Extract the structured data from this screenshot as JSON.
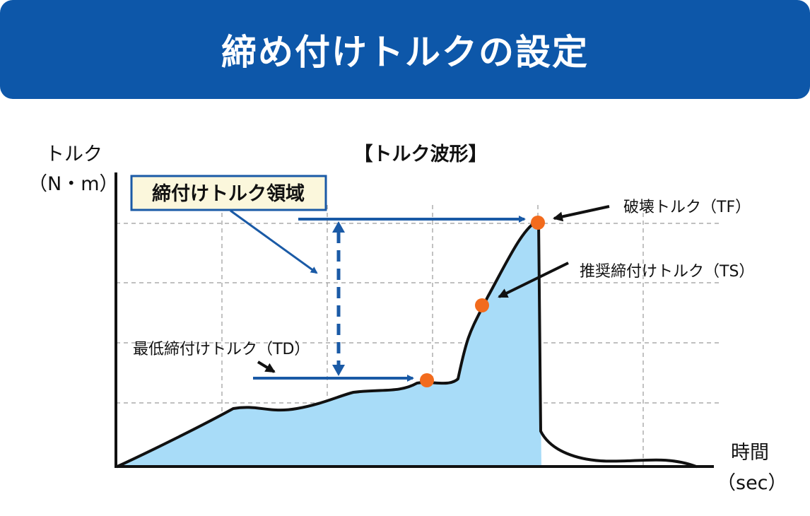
{
  "header": {
    "title": "締め付けトルクの設定"
  },
  "diagram": {
    "heading": "【トルク波形】",
    "y_axis": {
      "label": "トルク",
      "unit": "（N・m）"
    },
    "x_axis": {
      "label": "時間",
      "unit": "（sec）"
    },
    "region_box": {
      "label": "締付けトルク領域"
    },
    "markers": [
      {
        "id": "TF",
        "label": "破壊トルク（TF）",
        "color": "#f26b1d"
      },
      {
        "id": "TS",
        "label": "推奨締付けトルク（TS）",
        "color": "#f26b1d"
      },
      {
        "id": "TD",
        "label": "最低締付けトルク（TD）",
        "color": "#f26b1d"
      }
    ],
    "colors": {
      "banner": "#0d57a9",
      "accent_blue": "#1a5aa6",
      "fill": "#a8dcf8",
      "marker": "#f26b1d",
      "grid": "#9a9a9a"
    }
  }
}
